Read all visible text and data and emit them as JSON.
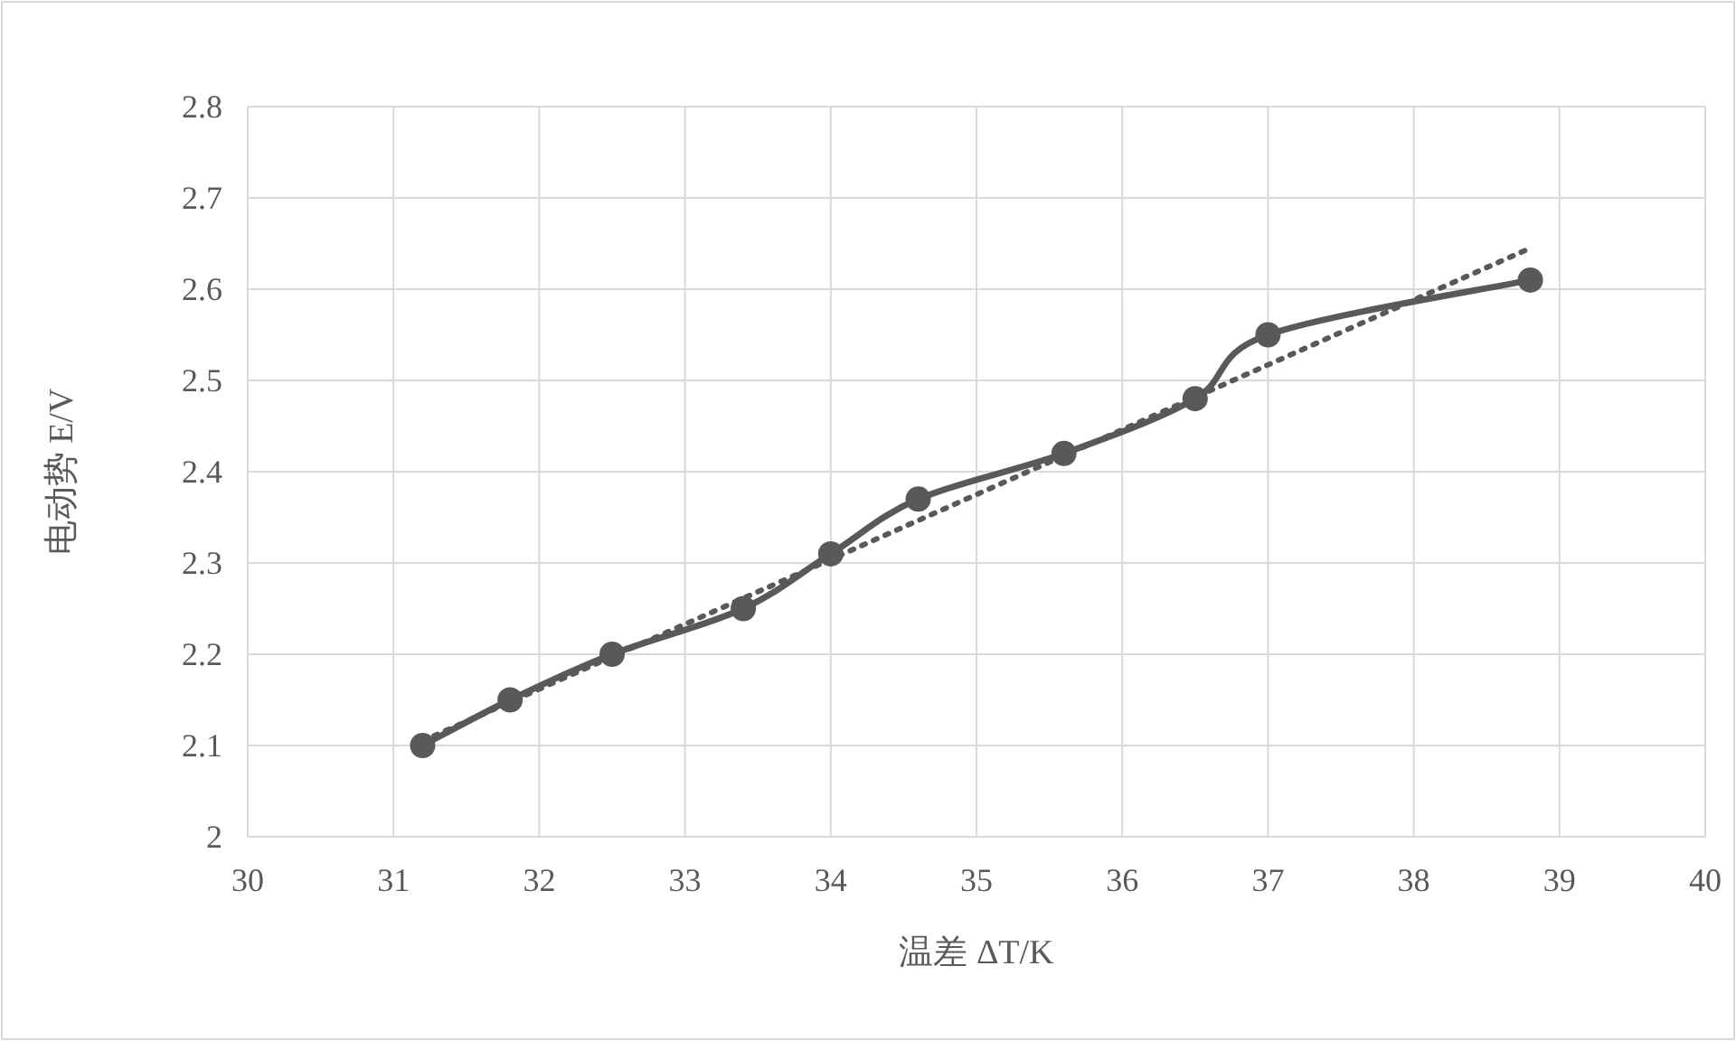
{
  "chart_data": {
    "type": "line",
    "xlabel": "温差 ΔT/K",
    "ylabel": "电动势 E/V",
    "xlim": [
      30,
      40
    ],
    "xticks": [
      30,
      31,
      32,
      33,
      34,
      35,
      36,
      37,
      38,
      39,
      40
    ],
    "ylim": [
      2,
      2.8
    ],
    "yticks": [
      2,
      2.1,
      2.2,
      2.3,
      2.4,
      2.5,
      2.6,
      2.7,
      2.8
    ],
    "grid": true,
    "series": [
      {
        "color": "#595959",
        "x": [
          31.2,
          31.8,
          32.5,
          33.4,
          34.0,
          34.6,
          35.6,
          36.5,
          37.0,
          38.8
        ],
        "values": [
          2.1,
          2.15,
          2.2,
          2.25,
          2.31,
          2.37,
          2.42,
          2.48,
          2.55,
          2.61
        ],
        "marker": "circle",
        "line_style": "solid"
      },
      {
        "color": "#595959",
        "x": [
          31.2,
          38.8
        ],
        "values": [
          2.105,
          2.645
        ],
        "marker": "none",
        "line_style": "dotted"
      }
    ]
  }
}
